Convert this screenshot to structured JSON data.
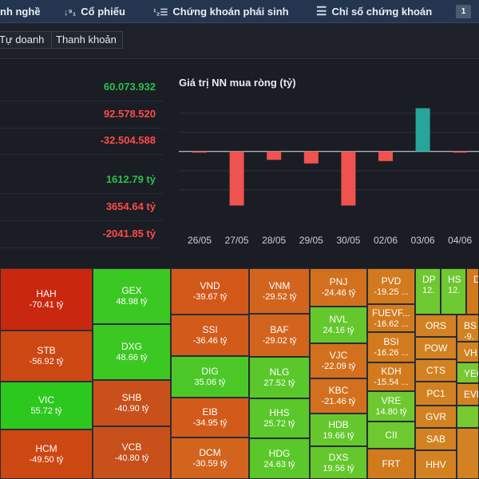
{
  "nav": {
    "items": [
      {
        "label": "nh nghề",
        "icon": ""
      },
      {
        "label": "Cổ phiếu",
        "icon": "↓⁹₁"
      },
      {
        "label": "Chứng khoán phái sinh",
        "icon": "¹₂☰"
      },
      {
        "label": "Chỉ số chứng khoán",
        "icon": "☰"
      }
    ],
    "badge": "1"
  },
  "subtabs": [
    "Tự doanh",
    "Thanh khoản"
  ],
  "stats": [
    {
      "value": "60.073.932",
      "color": "green"
    },
    {
      "value": "92.578.520",
      "color": "red"
    },
    {
      "value": "-32.504.588",
      "color": "red"
    },
    {
      "value": "1612.79 tỷ",
      "color": "green"
    },
    {
      "value": "3654.64 tỷ",
      "color": "red"
    },
    {
      "value": "-2041.85 tỷ",
      "color": "red"
    }
  ],
  "chart_title": "Giá trị NN mua ròng (tỷ)",
  "chart_data": {
    "type": "bar",
    "title": "Giá trị NN mua ròng (tỷ)",
    "categories": [
      "26/05",
      "27/05",
      "28/05",
      "29/05",
      "30/05",
      "02/06",
      "03/06",
      "04/06"
    ],
    "values": [
      -1,
      -45,
      -7,
      -10,
      -45,
      -8,
      36,
      -1
    ],
    "ylim": [
      -60,
      45
    ],
    "gridlines": [
      1,
      0.5,
      0,
      -0.5,
      -1
    ],
    "colors": {
      "positive": "#26a69a",
      "negative": "#ef5350"
    }
  },
  "heatmap": [
    {
      "sym": "HAH",
      "val": "-70.41 tỷ",
      "color": "#c9280f"
    },
    {
      "sym": "STB",
      "val": "-56.92 tỷ",
      "color": "#cd4713"
    },
    {
      "sym": "VIC",
      "val": "55.72 tỷ",
      "color": "#2cc81e"
    },
    {
      "sym": "HCM",
      "val": "-49.50 tỷ",
      "color": "#cd4713"
    },
    {
      "sym": "GEX",
      "val": "48.98 tỷ",
      "color": "#3cc822"
    },
    {
      "sym": "DXG",
      "val": "48.66 tỷ",
      "color": "#3cc822"
    },
    {
      "sym": "SHB",
      "val": "-40.90 tỷ",
      "color": "#c8501a"
    },
    {
      "sym": "VCB",
      "val": "-40.80 tỷ",
      "color": "#c8501a"
    },
    {
      "sym": "VND",
      "val": "-39.67 tỷ",
      "color": "#d2581a"
    },
    {
      "sym": "SSI",
      "val": "-36.46 tỷ",
      "color": "#d25a1a"
    },
    {
      "sym": "DIG",
      "val": "35.06 tỷ",
      "color": "#4bc827"
    },
    {
      "sym": "EIB",
      "val": "-34.95 tỷ",
      "color": "#d25a1a"
    },
    {
      "sym": "DCM",
      "val": "-30.59 tỷ",
      "color": "#d2641e"
    },
    {
      "sym": "VNM",
      "val": "-29.52 tỷ",
      "color": "#d2641e"
    },
    {
      "sym": "BAF",
      "val": "-29.02 tỷ",
      "color": "#d2641e"
    },
    {
      "sym": "NLG",
      "val": "27.52 tỷ",
      "color": "#5ac82a"
    },
    {
      "sym": "HHS",
      "val": "25.72 tỷ",
      "color": "#5ac82a"
    },
    {
      "sym": "HDG",
      "val": "24.63 tỷ",
      "color": "#5ac82a"
    },
    {
      "sym": "PNJ",
      "val": "-24.46 tỷ",
      "color": "#d2701e"
    },
    {
      "sym": "NVL",
      "val": "24.16 tỷ",
      "color": "#64c82d"
    },
    {
      "sym": "VJC",
      "val": "-22.09 tỷ",
      "color": "#d2701e"
    },
    {
      "sym": "KBC",
      "val": "-21.46 tỷ",
      "color": "#d2701e"
    },
    {
      "sym": "HDB",
      "val": "19.66 tỷ",
      "color": "#64c82d"
    },
    {
      "sym": "DXS",
      "val": "19.56 tỷ",
      "color": "#64c82d"
    },
    {
      "sym": "PVD",
      "val": "-19.25 ...",
      "color": "#d27a1e"
    },
    {
      "sym": "FUEVF...",
      "val": "-16.62 ...",
      "color": "#d27a1e"
    },
    {
      "sym": "BSI",
      "val": "-16.26 ...",
      "color": "#d27a1e"
    },
    {
      "sym": "KDH",
      "val": "-15.54 ...",
      "color": "#d27a1e"
    },
    {
      "sym": "VRE",
      "val": "14.80 tỷ",
      "color": "#6ec830"
    },
    {
      "sym": "CII",
      "val": "",
      "color": "#6ec830"
    },
    {
      "sym": "FRT",
      "val": "",
      "color": "#d27a1e"
    },
    {
      "sym": "DP",
      "val": "12.",
      "color": "#6ec830"
    },
    {
      "sym": "HS",
      "val": "12.",
      "color": "#6ec830"
    },
    {
      "sym": "D",
      "val": "",
      "color": "#d27a1e"
    },
    {
      "sym": "ORS",
      "val": "",
      "color": "#d28222"
    },
    {
      "sym": "POW",
      "val": "",
      "color": "#d28222"
    },
    {
      "sym": "CTS",
      "val": "",
      "color": "#d28222"
    },
    {
      "sym": "PC1",
      "val": "",
      "color": "#d28222"
    },
    {
      "sym": "GVR",
      "val": "",
      "color": "#d28222"
    },
    {
      "sym": "SAB",
      "val": "",
      "color": "#d28222"
    },
    {
      "sym": "HHV",
      "val": "",
      "color": "#d28222"
    },
    {
      "sym": "BS",
      "val": "-9.",
      "color": "#d28222"
    },
    {
      "sym": "VH",
      "val": "",
      "color": "#d28222"
    },
    {
      "sym": "YEG",
      "val": "",
      "color": "#78c832"
    },
    {
      "sym": "EVF",
      "val": "",
      "color": "#d28222"
    },
    {
      "sym": "",
      "val": "",
      "color": "#78c832"
    },
    {
      "sym": "",
      "val": "",
      "color": "#d28222"
    }
  ]
}
